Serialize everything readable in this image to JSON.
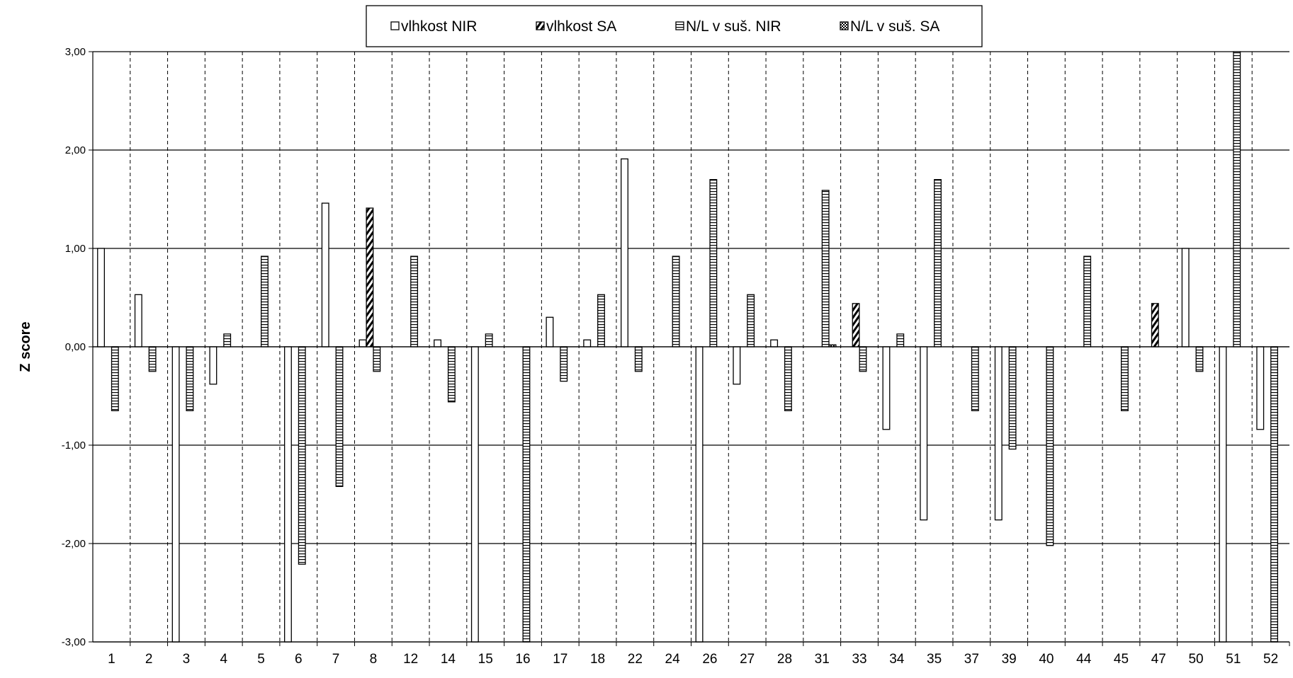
{
  "chart_data": {
    "type": "bar",
    "ylabel": "Z score",
    "ylim": [
      -3,
      3
    ],
    "yticks": [
      "3,00",
      "2,00",
      "1,00",
      "0,00",
      "-1,00",
      "-2,00",
      "-3,00"
    ],
    "grid": "horizontal solid, vertical dashed",
    "legend_position": "top-center",
    "categories": [
      "1",
      "2",
      "3",
      "4",
      "5",
      "6",
      "7",
      "8",
      "12",
      "14",
      "15",
      "16",
      "17",
      "18",
      "22",
      "24",
      "26",
      "27",
      "28",
      "31",
      "33",
      "34",
      "35",
      "37",
      "39",
      "40",
      "44",
      "45",
      "47",
      "50",
      "51",
      "52"
    ],
    "series": [
      {
        "name": "vlhkost NIR",
        "pattern": "plain",
        "values": [
          1.0,
          0.53,
          -3.0,
          -0.38,
          null,
          -3.0,
          1.46,
          0.07,
          null,
          0.07,
          -3.0,
          null,
          0.3,
          0.07,
          1.91,
          null,
          -3.0,
          -0.38,
          0.07,
          null,
          null,
          -0.84,
          -1.76,
          null,
          -1.76,
          null,
          null,
          null,
          null,
          1.0,
          -3.0,
          -0.84
        ]
      },
      {
        "name": "vlhkost SA",
        "pattern": "diagonal",
        "values": [
          null,
          null,
          null,
          null,
          null,
          null,
          null,
          1.41,
          null,
          null,
          null,
          null,
          null,
          null,
          null,
          null,
          null,
          null,
          null,
          null,
          0.44,
          null,
          null,
          null,
          null,
          null,
          null,
          null,
          0.44,
          null,
          null,
          null
        ]
      },
      {
        "name": "N/L v suš. NIR",
        "pattern": "horizontal",
        "values": [
          -0.65,
          -0.25,
          -0.65,
          0.13,
          0.92,
          -2.21,
          -1.42,
          -0.25,
          0.92,
          -0.56,
          0.13,
          -3.0,
          -0.35,
          0.53,
          -0.25,
          0.92,
          1.7,
          0.53,
          -0.65,
          1.59,
          -0.25,
          0.13,
          1.7,
          -0.65,
          -1.04,
          -2.02,
          0.92,
          -0.65,
          null,
          -0.25,
          3.0,
          -3.0
        ]
      },
      {
        "name": "N/L v suš. SA",
        "pattern": "checker",
        "values": [
          null,
          null,
          null,
          null,
          null,
          null,
          null,
          null,
          null,
          null,
          null,
          null,
          null,
          null,
          null,
          null,
          null,
          null,
          null,
          0.02,
          null,
          null,
          null,
          null,
          null,
          null,
          null,
          null,
          null,
          null,
          null,
          null
        ]
      }
    ]
  }
}
